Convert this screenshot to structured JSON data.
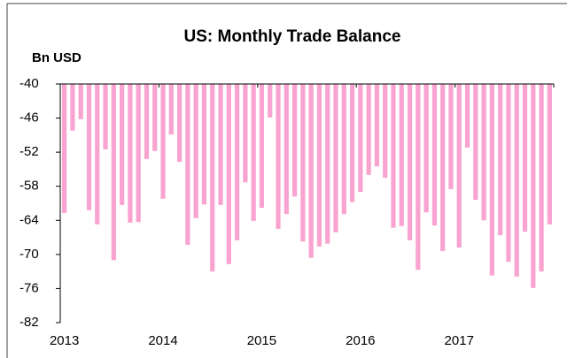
{
  "chart_data": {
    "type": "bar",
    "title": "US: Monthly Trade Balance",
    "y_label": "Bn USD",
    "categories": [
      "2013",
      null,
      null,
      null,
      null,
      null,
      null,
      null,
      null,
      null,
      null,
      null,
      "2014",
      null,
      null,
      null,
      null,
      null,
      null,
      null,
      null,
      null,
      null,
      null,
      "2015",
      null,
      null,
      null,
      null,
      null,
      null,
      null,
      null,
      null,
      null,
      null,
      "2016",
      null,
      null,
      null,
      null,
      null,
      null,
      null,
      null,
      null,
      null,
      null,
      "2017",
      null,
      null,
      null,
      null,
      null,
      null,
      null,
      null,
      null,
      null,
      null
    ],
    "values": [
      -62.7,
      -48.2,
      -46.2,
      -62.2,
      -64.7,
      -51.5,
      -71.0,
      -61.3,
      -64.4,
      -64.3,
      -53.2,
      -51.8,
      -60.2,
      -48.9,
      -53.7,
      -68.3,
      -63.6,
      -61.2,
      -73.0,
      -61.3,
      -71.7,
      -67.5,
      -57.3,
      -64.1,
      -61.8,
      -45.9,
      -65.5,
      -62.9,
      -59.8,
      -67.7,
      -70.6,
      -68.6,
      -68.1,
      -66.1,
      -62.9,
      -60.8,
      -59.0,
      -56.0,
      -54.5,
      -56.5,
      -65.3,
      -65.0,
      -67.5,
      -72.7,
      -62.6,
      -64.9,
      -69.4,
      -58.5,
      -68.8,
      -51.2,
      -60.4,
      -64.0,
      -73.7,
      -66.6,
      -71.3,
      -73.9,
      -66.0,
      -75.9,
      -73.0,
      -64.7
    ],
    "color": "#f9a3d0",
    "ylim": [
      -82,
      -40
    ],
    "yticks": [
      -82,
      -76,
      -70,
      -64,
      -58,
      -52,
      -46,
      -40
    ]
  }
}
